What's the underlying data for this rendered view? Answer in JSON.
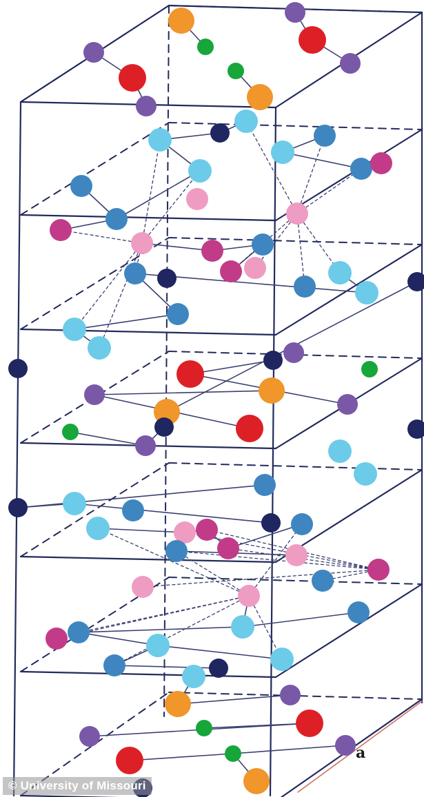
{
  "axis_label": "a",
  "credit": "© University of Missouri",
  "colors": {
    "frame": "#222a5c",
    "bond": "#3a4070",
    "scale_line": "#cf7060",
    "navy": "#1f2660",
    "purple": "#7a58a8",
    "red": "#dd2026",
    "orange": "#f0962a",
    "green": "#16a63a",
    "magenta": "#c23b88",
    "pink": "#ef9cc2",
    "steel_blue": "#3f86c0",
    "sky_blue": "#6ccbe9"
  },
  "atom_types": [
    "navy",
    "purple",
    "red",
    "orange",
    "green",
    "magenta",
    "pink",
    "steel-blue",
    "sky-blue"
  ]
}
